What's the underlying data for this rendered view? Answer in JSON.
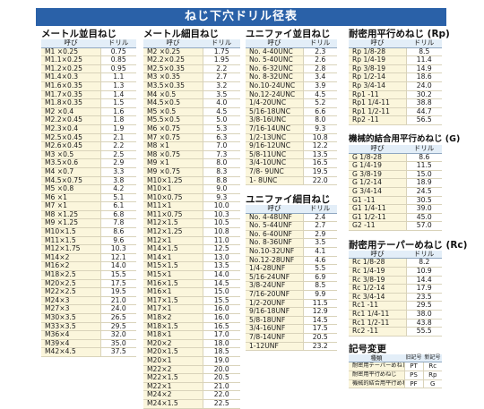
{
  "title": "ねじ下穴ドリル径表",
  "headers": {
    "thread": "呼び",
    "drill": "ドリル"
  },
  "metric_coarse": {
    "title": "メートル並目ねじ",
    "rows": [
      [
        "M1 ×0.25",
        "0.75"
      ],
      [
        "M1.1×0.25",
        "0.85"
      ],
      [
        "M1.2×0.25",
        "0.95"
      ],
      [
        "M1.4×0.3",
        "1.1"
      ],
      [
        "M1.6×0.35",
        "1.3"
      ],
      [
        "M1.7×0.35",
        "1.4"
      ],
      [
        "M1.8×0.35",
        "1.5"
      ],
      [
        "M2 ×0.4",
        "1.6"
      ],
      [
        "M2.2×0.45",
        "1.8"
      ],
      [
        "M2.3×0.4",
        "1.9"
      ],
      [
        "M2.5×0.45",
        "2.1"
      ],
      [
        "M2.6×0.45",
        "2.2"
      ],
      [
        "M3 ×0.5",
        "2.5"
      ],
      [
        "M3.5×0.6",
        "2.9"
      ],
      [
        "M4 ×0.7",
        "3.3"
      ],
      [
        "M4.5×0.75",
        "3.8"
      ],
      [
        "M5 ×0.8",
        "4.2"
      ],
      [
        "M6 ×1",
        "5.1"
      ],
      [
        "M7 ×1",
        "6.1"
      ],
      [
        "M8 ×1.25",
        "6.8"
      ],
      [
        "M9 ×1.25",
        "7.8"
      ],
      [
        "M10×1.5",
        "8.6"
      ],
      [
        "M11×1.5",
        "9.6"
      ],
      [
        "M12×1.75",
        "10.3"
      ],
      [
        "M14×2",
        "12.1"
      ],
      [
        "M16×2",
        "14.0"
      ],
      [
        "M18×2.5",
        "15.5"
      ],
      [
        "M20×2.5",
        "17.5"
      ],
      [
        "M22×2.5",
        "19.5"
      ],
      [
        "M24×3",
        "21.0"
      ],
      [
        "M27×3",
        "24.0"
      ],
      [
        "M30×3.5",
        "26.5"
      ],
      [
        "M33×3.5",
        "29.5"
      ],
      [
        "M36×4",
        "32.0"
      ],
      [
        "M39×4",
        "35.0"
      ],
      [
        "M42×4.5",
        "37.5"
      ]
    ]
  },
  "metric_fine": {
    "title": "メートル細目ねじ",
    "rows": [
      [
        "M2 ×0.25",
        "1.75"
      ],
      [
        "M2.2×0.25",
        "1.95"
      ],
      [
        "M2.5×0.35",
        "2.2"
      ],
      [
        "M3 ×0.35",
        "2.7"
      ],
      [
        "M3.5×0.35",
        "3.2"
      ],
      [
        "M4 ×0.5",
        "3.5"
      ],
      [
        "M4.5×0.5",
        "4.0"
      ],
      [
        "M5 ×0.5",
        "4.5"
      ],
      [
        "M5.5×0.5",
        "5.0"
      ],
      [
        "M6 ×0.75",
        "5.3"
      ],
      [
        "M7 ×0.75",
        "6.3"
      ],
      [
        "M8 ×1",
        "7.0"
      ],
      [
        "M8 ×0.75",
        "7.3"
      ],
      [
        "M9 ×1",
        "8.0"
      ],
      [
        "M9 ×0.75",
        "8.3"
      ],
      [
        "M10×1.25",
        "8.8"
      ],
      [
        "M10×1",
        "9.0"
      ],
      [
        "M10×0.75",
        "9.3"
      ],
      [
        "M11×1",
        "10.0"
      ],
      [
        "M11×0.75",
        "10.3"
      ],
      [
        "M12×1.5",
        "10.5"
      ],
      [
        "M12×1.25",
        "10.8"
      ],
      [
        "M12×1",
        "11.0"
      ],
      [
        "M14×1.5",
        "12.5"
      ],
      [
        "M14×1",
        "13.0"
      ],
      [
        "M15×1.5",
        "13.5"
      ],
      [
        "M15×1",
        "14.0"
      ],
      [
        "M16×1.5",
        "14.5"
      ],
      [
        "M16×1",
        "15.0"
      ],
      [
        "M17×1.5",
        "15.5"
      ],
      [
        "M17×1",
        "16.0"
      ],
      [
        "M18×2",
        "16.0"
      ],
      [
        "M18×1.5",
        "16.5"
      ],
      [
        "M18×1",
        "17.0"
      ],
      [
        "M20×2",
        "18.0"
      ],
      [
        "M20×1.5",
        "18.5"
      ],
      [
        "M20×1",
        "19.0"
      ],
      [
        "M22×2",
        "20.0"
      ],
      [
        "M22×1.5",
        "20.5"
      ],
      [
        "M22×1",
        "21.0"
      ],
      [
        "M24×2",
        "22.0"
      ],
      [
        "M24×1.5",
        "22.5"
      ]
    ]
  },
  "unified_coarse": {
    "title": "ユニファイ並目ねじ",
    "rows": [
      [
        "No. 4-40UNC",
        "2.3"
      ],
      [
        "No. 5-40UNC",
        "2.6"
      ],
      [
        "No. 6-32UNC",
        "2.8"
      ],
      [
        "No. 8-32UNC",
        "3.4"
      ],
      [
        "No.10-24UNC",
        "3.9"
      ],
      [
        "No.12-24UNC",
        "4.5"
      ],
      [
        "1/4-20UNC",
        "5.2"
      ],
      [
        "5/16-18UNC",
        "6.6"
      ],
      [
        "3/8-16UNC",
        "8.0"
      ],
      [
        "7/16-14UNC",
        "9.3"
      ],
      [
        "1/2-13UNC",
        "10.8"
      ],
      [
        "9/16-12UNC",
        "12.2"
      ],
      [
        "5/8-11UNC",
        "13.5"
      ],
      [
        "3/4-10UNC",
        "16.5"
      ],
      [
        "7/8- 9UNC",
        "19.5"
      ],
      [
        "1- 8UNC",
        "22.0"
      ]
    ]
  },
  "unified_fine": {
    "title": "ユニファイ細目ねじ",
    "rows": [
      [
        "No. 4-48UNF",
        "2.4"
      ],
      [
        "No. 5-44UNF",
        "2.7"
      ],
      [
        "No. 6-40UNF",
        "2.9"
      ],
      [
        "No. 8-36UNF",
        "3.5"
      ],
      [
        "No.10-32UNF",
        "4.1"
      ],
      [
        "No.12-28UNF",
        "4.6"
      ],
      [
        "1/4-28UNF",
        "5.5"
      ],
      [
        "5/16-24UNF",
        "6.9"
      ],
      [
        "3/8-24UNF",
        "8.5"
      ],
      [
        "7/16-20UNF",
        "9.9"
      ],
      [
        "1/2-20UNF",
        "11.5"
      ],
      [
        "9/16-18UNF",
        "12.9"
      ],
      [
        "5/8-18UNF",
        "14.5"
      ],
      [
        "3/4-16UNF",
        "17.5"
      ],
      [
        "7/8-14UNF",
        "20.5"
      ],
      [
        "1-12UNF",
        "23.2"
      ]
    ]
  },
  "pipe_parallel": {
    "title": "耐密用平行めねじ (Rp)",
    "rows": [
      [
        "Rp 1/8-28",
        "8.5"
      ],
      [
        "Rp 1/4-19",
        "11.4"
      ],
      [
        "Rp 3/8-19",
        "14.9"
      ],
      [
        "Rp 1/2-14",
        "18.6"
      ],
      [
        "Rp 3/4-14",
        "24.0"
      ],
      [
        "Rp1 -11",
        "30.2"
      ],
      [
        "Rp1 1/4-11",
        "38.8"
      ],
      [
        "Rp1 1/2-11",
        "44.7"
      ],
      [
        "Rp2 -11",
        "56.5"
      ]
    ]
  },
  "mechanical_parallel": {
    "title": "機械的結合用平行めねじ (G)",
    "rows": [
      [
        "G 1/8-28",
        "8.6"
      ],
      [
        "G 1/4-19",
        "11.5"
      ],
      [
        "G 3/8-19",
        "15.0"
      ],
      [
        "G 1/2-14",
        "18.9"
      ],
      [
        "G 3/4-14",
        "24.5"
      ],
      [
        "G1 -11",
        "30.5"
      ],
      [
        "G1 1/4-11",
        "39.0"
      ],
      [
        "G1 1/2-11",
        "45.0"
      ],
      [
        "G2 -11",
        "57.0"
      ]
    ]
  },
  "pipe_taper": {
    "title": "耐密用テーパーめねじ (Rc)",
    "rows": [
      [
        "Rc 1/8-28",
        "8.2"
      ],
      [
        "Rc 1/4-19",
        "10.9"
      ],
      [
        "Rc 3/8-19",
        "14.4"
      ],
      [
        "Rc 1/2-14",
        "17.9"
      ],
      [
        "Rc 3/4-14",
        "23.5"
      ],
      [
        "Rc1 -11",
        "29.5"
      ],
      [
        "Rc1 1/4-11",
        "38.0"
      ],
      [
        "Rc1 1/2-11",
        "43.8"
      ],
      [
        "Rc2 -11",
        "55.5"
      ]
    ]
  },
  "symbol_change": {
    "title": "記号変更",
    "headers": [
      "種類",
      "旧記号",
      "新記号"
    ],
    "rows": [
      [
        "耐密用テーパーめねじ",
        "PT",
        "Rc"
      ],
      [
        "耐密用平行めねじ",
        "PS",
        "Rp"
      ],
      [
        "機械的結合用平行めねじ",
        "PF",
        "G"
      ]
    ]
  }
}
